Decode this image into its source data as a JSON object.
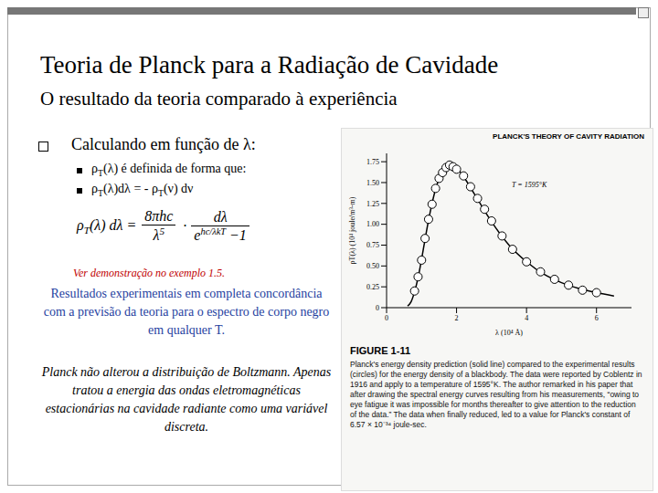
{
  "slide": {
    "title": "Teoria de Planck para a Radiação de Cavidade",
    "subtitle": "O resultado da teoria comparado à experiência",
    "bullet": "Calculando em função de λ:",
    "sub_bullets": [
      [
        "ρ",
        {
          "sub": "T"
        },
        "(λ) é definida de forma que:"
      ],
      [
        "ρ",
        {
          "sub": "T"
        },
        "(λ)dλ = - ρ",
        {
          "sub": "T"
        },
        "(ν) dν"
      ]
    ],
    "formula": {
      "lhs": [
        "ρ",
        {
          "sub": "T"
        },
        "(λ) dλ ="
      ],
      "frac1_num": "8πhc",
      "frac1_den": "λ",
      "den_power": "5",
      "dot": "·",
      "frac2_num": "dλ",
      "exp_base": "e",
      "exponent": "hc/λkT",
      "minus_one": "−1"
    },
    "note": "Ver demonstração no exemplo 1.5.",
    "result_text": "Resultados experimentais em completa concordância com a previsão da teoria para o espectro de corpo negro em qualquer T.",
    "closing_text": "Planck não alterou a distribuição de Boltzmann. Apenas tratou a energia das ondas eletromagnéticas estacionárias na cavidade radiante como uma variável discreta.",
    "figure_label": "FIGURE 1-11",
    "figure_caption": "Planck's energy density prediction (solid line) compared to the experimental results (circles) for the energy density of a blackbody. The data were reported by Coblentz in 1916 and apply to a temperature of 1595°K. The author remarked in his paper that after drawing the spectral energy curves resulting from his measurements, “owing to eye fatigue it was impossible for months thereafter to give attention to the reduction of the data.” The data when finally reduced, led to a value for Planck's constant of 6.57 × 10⁻³⁴ joule-sec."
  },
  "chart_data": {
    "type": "line",
    "title": "PLANCK'S THEORY OF CAVITY RADIATION",
    "x_label": "λ (10⁴ Å)",
    "y_label": "ρT(λ) (10⁴ joule/m³-m)",
    "annotation": "T = 1595°K",
    "xlim": [
      0,
      7
    ],
    "xticks": [
      0,
      2,
      4,
      6
    ],
    "ylim": [
      0,
      1.85
    ],
    "yticks": [
      0,
      0.25,
      {
        "value": 0.5,
        "label": "0.50"
      },
      0.75,
      {
        "value": 1,
        "label": "1.00"
      },
      1.25,
      {
        "value": 1.5,
        "label": "1.50"
      },
      1.75
    ],
    "series": [
      {
        "type": "line",
        "color": "#000000",
        "line_style": "solid",
        "x": [
          0.6,
          0.7,
          0.8,
          0.9,
          1.0,
          1.1,
          1.2,
          1.3,
          1.4,
          1.6,
          1.8,
          2.0,
          2.2,
          2.5,
          3.0,
          3.5,
          4.0,
          4.5,
          5.0,
          5.5,
          6.0,
          6.5
        ],
        "values": [
          0.02,
          0.07,
          0.19,
          0.36,
          0.58,
          0.82,
          1.05,
          1.25,
          1.42,
          1.63,
          1.7,
          1.67,
          1.57,
          1.37,
          1.03,
          0.75,
          0.55,
          0.4,
          0.3,
          0.23,
          0.18,
          0.14
        ]
      },
      {
        "type": "scatter",
        "color": "#000000",
        "marker": "circle",
        "x": [
          0.8,
          0.9,
          1.0,
          1.1,
          1.2,
          1.3,
          1.4,
          1.5,
          1.6,
          1.7,
          1.8,
          1.9,
          2.0,
          2.2,
          2.4,
          2.6,
          2.8,
          3.0,
          3.3,
          3.6,
          4.0,
          4.4,
          4.8,
          5.2,
          5.6,
          6.0
        ],
        "values": [
          0.2,
          0.37,
          0.57,
          0.83,
          1.06,
          1.24,
          1.43,
          1.55,
          1.62,
          1.68,
          1.71,
          1.69,
          1.66,
          1.58,
          1.45,
          1.31,
          1.18,
          1.04,
          0.86,
          0.7,
          0.55,
          0.43,
          0.34,
          0.27,
          0.21,
          0.18
        ]
      }
    ]
  }
}
